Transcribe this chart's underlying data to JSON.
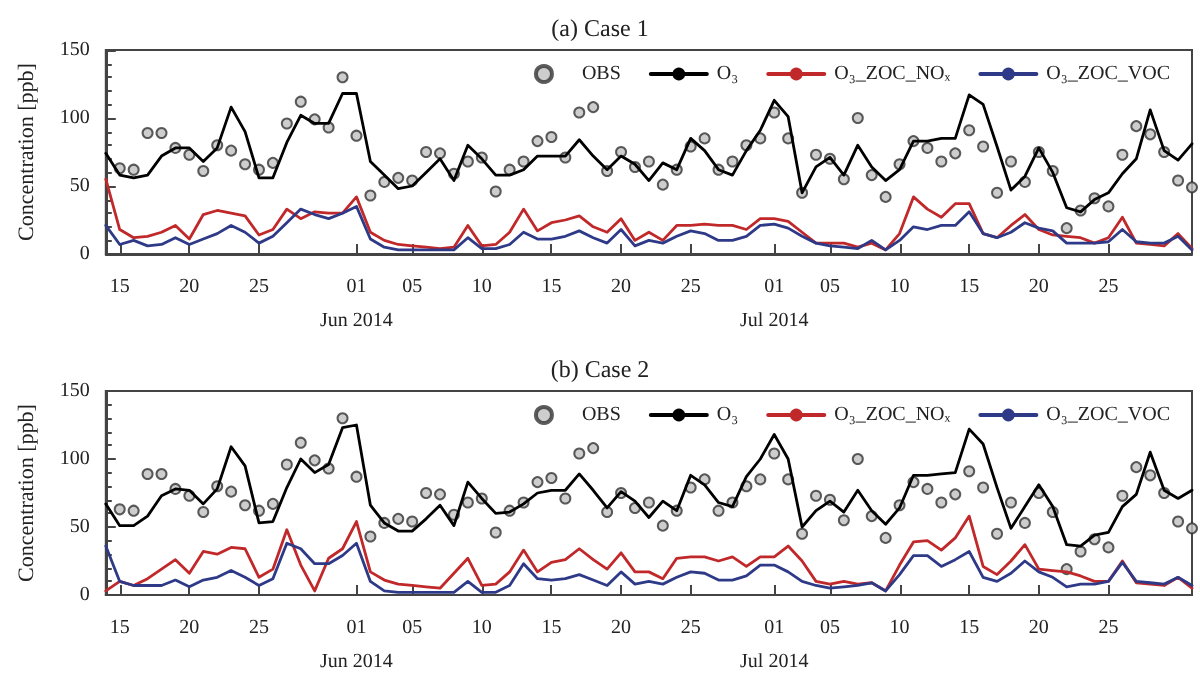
{
  "chart_data": [
    {
      "type": "line",
      "title": "(a) Case 1",
      "ylabel": "Concentration [ppb]",
      "legend": "top right",
      "grid": false,
      "marker": "none",
      "line_style": "solid",
      "x": [
        "2014-05-14",
        "2014-05-15",
        "2014-05-16",
        "2014-05-17",
        "2014-05-18",
        "2014-05-19",
        "2014-05-20",
        "2014-05-21",
        "2014-05-22",
        "2014-05-23",
        "2014-05-24",
        "2014-05-25",
        "2014-05-26",
        "2014-05-27",
        "2014-05-28",
        "2014-05-29",
        "2014-05-30",
        "2014-05-31",
        "2014-06-01",
        "2014-06-02",
        "2014-06-03",
        "2014-06-04",
        "2014-06-05",
        "2014-06-06",
        "2014-06-07",
        "2014-06-08",
        "2014-06-09",
        "2014-06-10",
        "2014-06-11",
        "2014-06-12",
        "2014-06-13",
        "2014-06-14",
        "2014-06-15",
        "2014-06-16",
        "2014-06-17",
        "2014-06-18",
        "2014-06-19",
        "2014-06-20",
        "2014-06-21",
        "2014-06-22",
        "2014-06-23",
        "2014-06-24",
        "2014-06-25",
        "2014-06-26",
        "2014-06-27",
        "2014-06-28",
        "2014-06-29",
        "2014-06-30",
        "2014-07-01",
        "2014-07-02",
        "2014-07-03",
        "2014-07-04",
        "2014-07-05",
        "2014-07-06",
        "2014-07-07",
        "2014-07-08",
        "2014-07-09",
        "2014-07-10",
        "2014-07-11",
        "2014-07-12",
        "2014-07-13",
        "2014-07-14",
        "2014-07-15",
        "2014-07-16",
        "2014-07-17",
        "2014-07-18",
        "2014-07-19",
        "2014-07-20",
        "2014-07-21",
        "2014-07-22",
        "2014-07-23",
        "2014-07-24",
        "2014-07-25",
        "2014-07-26",
        "2014-07-27",
        "2014-07-28",
        "2014-07-29",
        "2014-07-30",
        "2014-07-31"
      ],
      "xlim": [
        "2014-05-14",
        "2014-07-31"
      ],
      "xticks": [
        {
          "value": "2014-05-15",
          "label": "15"
        },
        {
          "value": "2014-05-20",
          "label": "20"
        },
        {
          "value": "2014-05-25",
          "label": "25"
        },
        {
          "value": "2014-06-01",
          "label": "01\nJun 2014"
        },
        {
          "value": "2014-06-05",
          "label": "05"
        },
        {
          "value": "2014-06-10",
          "label": "10"
        },
        {
          "value": "2014-06-15",
          "label": "15"
        },
        {
          "value": "2014-06-20",
          "label": "20"
        },
        {
          "value": "2014-06-25",
          "label": "25"
        },
        {
          "value": "2014-07-01",
          "label": "01\nJul 2014"
        },
        {
          "value": "2014-07-05",
          "label": "05"
        },
        {
          "value": "2014-07-10",
          "label": "10"
        },
        {
          "value": "2014-07-15",
          "label": "15"
        },
        {
          "value": "2014-07-20",
          "label": "20"
        },
        {
          "value": "2014-07-25",
          "label": "25"
        }
      ],
      "ylim": [
        0,
        150
      ],
      "yticks": [
        0,
        50,
        100,
        150
      ],
      "series": [
        {
          "name": "OBS",
          "type": "scatter",
          "marker": "circle",
          "color": "#c0c0c0",
          "values": [
            null,
            63,
            62,
            89,
            89,
            78,
            73,
            61,
            80,
            76,
            66,
            62,
            67,
            96,
            112,
            99,
            93,
            130,
            87,
            43,
            53,
            56,
            54,
            75,
            74,
            59,
            68,
            71,
            46,
            62,
            68,
            83,
            86,
            71,
            104,
            108,
            61,
            75,
            64,
            68,
            51,
            62,
            79,
            85,
            62,
            68,
            80,
            85,
            104,
            85,
            45,
            73,
            70,
            55,
            100,
            58,
            42,
            66,
            83,
            78,
            68,
            74,
            91,
            79,
            45,
            68,
            53,
            75,
            61,
            19,
            32,
            41,
            35,
            73,
            94,
            88,
            75,
            54,
            49
          ]
        },
        {
          "name": "O₃",
          "color": "#000000",
          "values": [
            74,
            58,
            56,
            58,
            72,
            78,
            78,
            68,
            78,
            108,
            90,
            56,
            56,
            82,
            102,
            96,
            96,
            118,
            118,
            68,
            58,
            48,
            50,
            60,
            70,
            54,
            80,
            70,
            58,
            58,
            62,
            72,
            72,
            72,
            84,
            72,
            62,
            72,
            66,
            54,
            67,
            62,
            85,
            76,
            62,
            58,
            76,
            91,
            113,
            101,
            45,
            64,
            71,
            58,
            80,
            64,
            54,
            62,
            83,
            83,
            85,
            85,
            117,
            110,
            79,
            47,
            57,
            78,
            60,
            34,
            31,
            40,
            45,
            59,
            70,
            106,
            76,
            69,
            81
          ]
        },
        {
          "name": "O₃_ZOC_NOₓ",
          "color": "#c0282a",
          "values": [
            55,
            18,
            12,
            13,
            16,
            21,
            11,
            29,
            32,
            30,
            28,
            14,
            18,
            33,
            26,
            31,
            30,
            30,
            42,
            16,
            10,
            7,
            6,
            5,
            4,
            5,
            21,
            6,
            7,
            16,
            33,
            17,
            23,
            25,
            28,
            20,
            16,
            26,
            10,
            16,
            10,
            21,
            21,
            22,
            21,
            21,
            18,
            26,
            26,
            24,
            16,
            8,
            8,
            8,
            5,
            8,
            3,
            15,
            42,
            33,
            27,
            37,
            37,
            15,
            12,
            21,
            29,
            18,
            14,
            13,
            12,
            8,
            12,
            27,
            8,
            7,
            6,
            15,
            4
          ]
        },
        {
          "name": "O₃_ZOC_VOC",
          "color": "#2e3a87",
          "values": [
            21,
            7,
            10,
            6,
            7,
            12,
            7,
            11,
            15,
            21,
            16,
            8,
            13,
            23,
            33,
            29,
            26,
            30,
            35,
            11,
            5,
            3,
            3,
            3,
            3,
            3,
            12,
            4,
            4,
            7,
            16,
            11,
            11,
            13,
            17,
            12,
            8,
            18,
            6,
            10,
            8,
            13,
            17,
            15,
            10,
            10,
            13,
            21,
            22,
            19,
            13,
            8,
            6,
            5,
            4,
            10,
            3,
            10,
            20,
            18,
            21,
            21,
            31,
            15,
            12,
            16,
            23,
            19,
            17,
            8,
            8,
            8,
            9,
            18,
            9,
            8,
            8,
            13,
            3
          ]
        }
      ]
    },
    {
      "type": "line",
      "title": "(b) Case 2",
      "ylabel": "Concentration [ppb]",
      "legend": "top right",
      "grid": false,
      "marker": "none",
      "line_style": "solid",
      "x": [
        "2014-05-14",
        "2014-05-15",
        "2014-05-16",
        "2014-05-17",
        "2014-05-18",
        "2014-05-19",
        "2014-05-20",
        "2014-05-21",
        "2014-05-22",
        "2014-05-23",
        "2014-05-24",
        "2014-05-25",
        "2014-05-26",
        "2014-05-27",
        "2014-05-28",
        "2014-05-29",
        "2014-05-30",
        "2014-05-31",
        "2014-06-01",
        "2014-06-02",
        "2014-06-03",
        "2014-06-04",
        "2014-06-05",
        "2014-06-06",
        "2014-06-07",
        "2014-06-08",
        "2014-06-09",
        "2014-06-10",
        "2014-06-11",
        "2014-06-12",
        "2014-06-13",
        "2014-06-14",
        "2014-06-15",
        "2014-06-16",
        "2014-06-17",
        "2014-06-18",
        "2014-06-19",
        "2014-06-20",
        "2014-06-21",
        "2014-06-22",
        "2014-06-23",
        "2014-06-24",
        "2014-06-25",
        "2014-06-26",
        "2014-06-27",
        "2014-06-28",
        "2014-06-29",
        "2014-06-30",
        "2014-07-01",
        "2014-07-02",
        "2014-07-03",
        "2014-07-04",
        "2014-07-05",
        "2014-07-06",
        "2014-07-07",
        "2014-07-08",
        "2014-07-09",
        "2014-07-10",
        "2014-07-11",
        "2014-07-12",
        "2014-07-13",
        "2014-07-14",
        "2014-07-15",
        "2014-07-16",
        "2014-07-17",
        "2014-07-18",
        "2014-07-19",
        "2014-07-20",
        "2014-07-21",
        "2014-07-22",
        "2014-07-23",
        "2014-07-24",
        "2014-07-25",
        "2014-07-26",
        "2014-07-27",
        "2014-07-28",
        "2014-07-29",
        "2014-07-30",
        "2014-07-31"
      ],
      "xlim": [
        "2014-05-14",
        "2014-07-31"
      ],
      "xticks": [
        {
          "value": "2014-05-15",
          "label": "15"
        },
        {
          "value": "2014-05-20",
          "label": "20"
        },
        {
          "value": "2014-05-25",
          "label": "25"
        },
        {
          "value": "2014-06-01",
          "label": "01\nJun 2014"
        },
        {
          "value": "2014-06-05",
          "label": "05"
        },
        {
          "value": "2014-06-10",
          "label": "10"
        },
        {
          "value": "2014-06-15",
          "label": "15"
        },
        {
          "value": "2014-06-20",
          "label": "20"
        },
        {
          "value": "2014-06-25",
          "label": "25"
        },
        {
          "value": "2014-07-01",
          "label": "01\nJul 2014"
        },
        {
          "value": "2014-07-05",
          "label": "05"
        },
        {
          "value": "2014-07-10",
          "label": "10"
        },
        {
          "value": "2014-07-15",
          "label": "15"
        },
        {
          "value": "2014-07-20",
          "label": "20"
        },
        {
          "value": "2014-07-25",
          "label": "25"
        }
      ],
      "ylim": [
        0,
        150
      ],
      "yticks": [
        0,
        50,
        100,
        150
      ],
      "series": [
        {
          "name": "OBS",
          "type": "scatter",
          "marker": "circle",
          "color": "#c0c0c0",
          "values": [
            null,
            63,
            62,
            89,
            89,
            78,
            73,
            61,
            80,
            76,
            66,
            62,
            67,
            96,
            112,
            99,
            93,
            130,
            87,
            43,
            53,
            56,
            54,
            75,
            74,
            59,
            68,
            71,
            46,
            62,
            68,
            83,
            86,
            71,
            104,
            108,
            61,
            75,
            64,
            68,
            51,
            62,
            79,
            85,
            62,
            68,
            80,
            85,
            104,
            85,
            45,
            73,
            70,
            55,
            100,
            58,
            42,
            66,
            83,
            78,
            68,
            74,
            91,
            79,
            45,
            68,
            53,
            75,
            61,
            19,
            32,
            41,
            35,
            73,
            94,
            88,
            75,
            54,
            49
          ]
        },
        {
          "name": "O₃",
          "color": "#000000",
          "values": [
            67,
            51,
            51,
            58,
            73,
            78,
            77,
            67,
            78,
            109,
            95,
            53,
            54,
            79,
            100,
            90,
            96,
            123,
            125,
            66,
            53,
            47,
            47,
            56,
            66,
            51,
            83,
            71,
            60,
            61,
            67,
            75,
            77,
            77,
            89,
            77,
            64,
            76,
            69,
            57,
            69,
            62,
            88,
            81,
            68,
            65,
            87,
            100,
            118,
            100,
            50,
            62,
            69,
            61,
            77,
            62,
            52,
            64,
            88,
            88,
            89,
            90,
            122,
            111,
            79,
            49,
            65,
            81,
            65,
            37,
            36,
            44,
            46,
            65,
            74,
            105,
            77,
            71,
            77
          ]
        },
        {
          "name": "O₃_ZOC_NOₓ",
          "color": "#c0282a",
          "values": [
            3,
            10,
            7,
            12,
            19,
            26,
            16,
            32,
            30,
            35,
            34,
            13,
            19,
            48,
            22,
            3,
            27,
            34,
            54,
            17,
            11,
            8,
            7,
            6,
            5,
            16,
            27,
            7,
            8,
            17,
            33,
            17,
            24,
            26,
            34,
            26,
            19,
            31,
            17,
            17,
            12,
            27,
            28,
            28,
            25,
            28,
            21,
            28,
            28,
            36,
            25,
            10,
            8,
            10,
            8,
            9,
            3,
            22,
            39,
            40,
            33,
            42,
            58,
            21,
            15,
            25,
            37,
            19,
            18,
            17,
            14,
            10,
            10,
            25,
            9,
            8,
            7,
            13,
            5
          ]
        },
        {
          "name": "O₃_ZOC_VOC",
          "color": "#2e3a87",
          "values": [
            36,
            10,
            7,
            7,
            7,
            11,
            6,
            11,
            13,
            18,
            13,
            7,
            12,
            38,
            34,
            23,
            23,
            29,
            38,
            10,
            3,
            2,
            2,
            2,
            2,
            2,
            10,
            2,
            2,
            7,
            23,
            12,
            11,
            12,
            15,
            11,
            7,
            17,
            8,
            10,
            8,
            13,
            17,
            16,
            11,
            11,
            14,
            22,
            22,
            17,
            10,
            7,
            5,
            6,
            7,
            9,
            3,
            15,
            29,
            29,
            21,
            26,
            32,
            13,
            10,
            16,
            25,
            17,
            13,
            6,
            8,
            8,
            10,
            24,
            10,
            9,
            8,
            13,
            7
          ]
        }
      ]
    }
  ]
}
